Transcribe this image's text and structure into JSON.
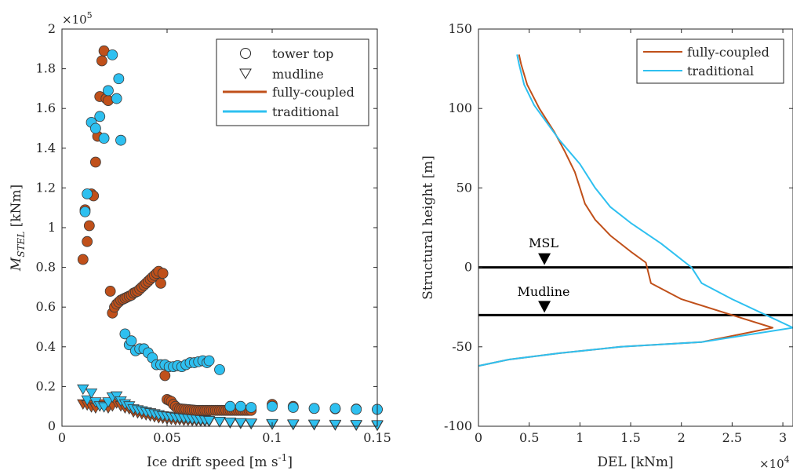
{
  "colors": {
    "fully_coupled": "#c0501a",
    "traditional": "#2ec0f0",
    "axis": "#262626"
  },
  "chart_data": [
    {
      "type": "scatter",
      "xlabel_main": "Ice drift speed [m s",
      "xlabel_sup": "-1",
      "xlabel_end": "]",
      "ylabel_main": "M",
      "ylabel_sub": "STEL",
      "ylabel_end": " [kNm]",
      "y_multiplier_base": "×10",
      "y_multiplier_exp": "5",
      "xlim": [
        0,
        0.15
      ],
      "ylim": [
        0,
        200000
      ],
      "xticks": [
        {
          "v": 0,
          "label": "0"
        },
        {
          "v": 0.05,
          "label": "0.05"
        },
        {
          "v": 0.1,
          "label": "0.1"
        },
        {
          "v": 0.15,
          "label": "0.15"
        }
      ],
      "yticks": [
        {
          "v": 0,
          "label": "0"
        },
        {
          "v": 20000,
          "label": "0.2"
        },
        {
          "v": 40000,
          "label": "0.4"
        },
        {
          "v": 60000,
          "label": "0.6"
        },
        {
          "v": 80000,
          "label": "0.8"
        },
        {
          "v": 100000,
          "label": "1"
        },
        {
          "v": 120000,
          "label": "1.2"
        },
        {
          "v": 140000,
          "label": "1.4"
        },
        {
          "v": 160000,
          "label": "1.6"
        },
        {
          "v": 180000,
          "label": "1.8"
        },
        {
          "v": 200000,
          "label": "2"
        }
      ],
      "legend": {
        "position": "top-right",
        "entries": [
          {
            "label": "tower top",
            "symbol": "circle"
          },
          {
            "label": "mudline",
            "symbol": "triangle"
          },
          {
            "label": "fully-coupled",
            "symbol": "line-fc"
          },
          {
            "label": "traditional",
            "symbol": "line-tr"
          }
        ]
      },
      "series": [
        {
          "model": "fully-coupled",
          "location": "tower top",
          "marker": "circle",
          "x": [
            0.01,
            0.011,
            0.012,
            0.013,
            0.014,
            0.015,
            0.016,
            0.017,
            0.018,
            0.019,
            0.02,
            0.021,
            0.022,
            0.023,
            0.024,
            0.025,
            0.026,
            0.027,
            0.028,
            0.029,
            0.03,
            0.031,
            0.032,
            0.033,
            0.034,
            0.035,
            0.036,
            0.037,
            0.038,
            0.039,
            0.04,
            0.041,
            0.042,
            0.043,
            0.044,
            0.045,
            0.046,
            0.047,
            0.048,
            0.049,
            0.05,
            0.051,
            0.052,
            0.053,
            0.054,
            0.055,
            0.056,
            0.057,
            0.058,
            0.059,
            0.06,
            0.061,
            0.062,
            0.063,
            0.064,
            0.065,
            0.066,
            0.067,
            0.068,
            0.069,
            0.07,
            0.071,
            0.072,
            0.073,
            0.074,
            0.075,
            0.076,
            0.077,
            0.078,
            0.079,
            0.08,
            0.081,
            0.082,
            0.083,
            0.084,
            0.085,
            0.086,
            0.087,
            0.088,
            0.089,
            0.09,
            0.1,
            0.11,
            0.12,
            0.13,
            0.14,
            0.15
          ],
          "y": [
            84000,
            109000,
            93000,
            101000,
            117000,
            116000,
            133000,
            146000,
            166000,
            184000,
            189000,
            165000,
            164000,
            68000,
            57000,
            60000,
            61500,
            62500,
            63500,
            64000,
            64500,
            65000,
            65500,
            66000,
            67000,
            67500,
            68000,
            69000,
            70000,
            71000,
            72000,
            73000,
            74000,
            75000,
            76000,
            77000,
            78000,
            72000,
            77000,
            25500,
            13500,
            13000,
            12500,
            11000,
            10000,
            9000,
            8800,
            8700,
            8600,
            8500,
            8400,
            8300,
            8200,
            8100,
            8000,
            8000,
            8000,
            8000,
            8000,
            8000,
            8000,
            8000,
            8000,
            8000,
            8000,
            8000,
            8000,
            8000,
            8000,
            8000,
            8000,
            8000,
            8000,
            8000,
            8000,
            8000,
            8000,
            8000,
            8000,
            8000,
            8000,
            11000,
            10000,
            9000,
            8800,
            8700,
            8500
          ],
          "sample": true
        },
        {
          "model": "traditional",
          "location": "tower top",
          "marker": "circle",
          "x": [
            0.011,
            0.012,
            0.014,
            0.016,
            0.018,
            0.02,
            0.022,
            0.024,
            0.026,
            0.027,
            0.028,
            0.03,
            0.032,
            0.033,
            0.035,
            0.037,
            0.039,
            0.041,
            0.043,
            0.045,
            0.047,
            0.049,
            0.051,
            0.053,
            0.055,
            0.057,
            0.059,
            0.061,
            0.063,
            0.065,
            0.067,
            0.069,
            0.07,
            0.075,
            0.08,
            0.085,
            0.09,
            0.1,
            0.11,
            0.12,
            0.13,
            0.14,
            0.15
          ],
          "y": [
            108000,
            117000,
            153000,
            150000,
            156000,
            145000,
            169000,
            187000,
            165000,
            175000,
            144000,
            46500,
            41000,
            43000,
            38000,
            39000,
            39000,
            37000,
            34500,
            31000,
            31000,
            31000,
            30000,
            30000,
            30500,
            30000,
            31000,
            32000,
            32000,
            32500,
            33000,
            32000,
            33000,
            28500,
            10000,
            10000,
            9500,
            10000,
            9500,
            9000,
            9000,
            8500,
            8500
          ],
          "sample": true
        },
        {
          "model": "fully-coupled",
          "location": "mudline",
          "marker": "triangle",
          "x": [
            0.01,
            0.012,
            0.014,
            0.016,
            0.018,
            0.02,
            0.022,
            0.024,
            0.026,
            0.028,
            0.03,
            0.032,
            0.034,
            0.036,
            0.038,
            0.04,
            0.042,
            0.044,
            0.046,
            0.048,
            0.05,
            0.052,
            0.054,
            0.056,
            0.058,
            0.06,
            0.062,
            0.064,
            0.066,
            0.068,
            0.07,
            0.075,
            0.08,
            0.085,
            0.09,
            0.1,
            0.11,
            0.12,
            0.13,
            0.14,
            0.15
          ],
          "y": [
            11000,
            10500,
            9500,
            9000,
            10000,
            11000,
            9000,
            10000,
            11500,
            10000,
            9000,
            8500,
            7000,
            6500,
            6000,
            5500,
            5000,
            4500,
            4000,
            3800,
            3500,
            3300,
            3000,
            3000,
            2800,
            2700,
            2600,
            2500,
            2400,
            2300,
            2200,
            2000,
            1500,
            1200,
            1000,
            800,
            600,
            500,
            400,
            300,
            200
          ]
        },
        {
          "model": "traditional",
          "location": "mudline",
          "marker": "triangle",
          "x": [
            0.01,
            0.012,
            0.014,
            0.016,
            0.018,
            0.02,
            0.022,
            0.024,
            0.026,
            0.028,
            0.03,
            0.032,
            0.034,
            0.036,
            0.038,
            0.04,
            0.042,
            0.044,
            0.046,
            0.048,
            0.05,
            0.052,
            0.054,
            0.056,
            0.058,
            0.06,
            0.062,
            0.064,
            0.066,
            0.068,
            0.07,
            0.075,
            0.08,
            0.085,
            0.09,
            0.1,
            0.11,
            0.12,
            0.13,
            0.14,
            0.15
          ],
          "y": [
            18500,
            13000,
            16500,
            12000,
            10000,
            9500,
            12000,
            14500,
            15000,
            12500,
            11000,
            10000,
            8500,
            8000,
            7500,
            7000,
            6500,
            6000,
            5500,
            5000,
            4800,
            4500,
            4200,
            4000,
            3800,
            3600,
            3400,
            3200,
            3000,
            2800,
            2600,
            2200,
            1800,
            1500,
            1300,
            1100,
            900,
            800,
            700,
            600,
            500
          ]
        }
      ]
    },
    {
      "type": "line",
      "xlabel": "DEL [kNm]",
      "ylabel": "Structural height [m]",
      "x_multiplier_base": "×10",
      "x_multiplier_exp": "4",
      "xlim": [
        0,
        31000
      ],
      "ylim": [
        -100,
        150
      ],
      "xticks": [
        {
          "v": 0,
          "label": "0"
        },
        {
          "v": 5000,
          "label": "0.5"
        },
        {
          "v": 10000,
          "label": "1"
        },
        {
          "v": 15000,
          "label": "1.5"
        },
        {
          "v": 20000,
          "label": "2"
        },
        {
          "v": 25000,
          "label": "2.5"
        },
        {
          "v": 30000,
          "label": "3"
        }
      ],
      "yticks": [
        {
          "v": -100,
          "label": "-100"
        },
        {
          "v": -50,
          "label": "-50"
        },
        {
          "v": 0,
          "label": "0"
        },
        {
          "v": 50,
          "label": "50"
        },
        {
          "v": 100,
          "label": "100"
        },
        {
          "v": 150,
          "label": "150"
        }
      ],
      "legend": {
        "position": "top-right",
        "entries": [
          {
            "label": "fully-coupled",
            "symbol": "line-fc"
          },
          {
            "label": "traditional",
            "symbol": "line-tr"
          }
        ]
      },
      "series": [
        {
          "name": "fully-coupled",
          "x": [
            4000,
            4200,
            4800,
            6000,
            7500,
            8500,
            9500,
            10000,
            10500,
            11500,
            13000,
            15000,
            16500,
            17000,
            20000,
            26000,
            29000,
            22000,
            14000,
            8000,
            3000,
            0
          ],
          "y": [
            134,
            128,
            115,
            100,
            85,
            73,
            60,
            50,
            40,
            30,
            20,
            10,
            3,
            -10,
            -20,
            -32,
            -38,
            -47,
            -50,
            -54,
            -58,
            -62
          ]
        },
        {
          "name": "traditional",
          "x": [
            3800,
            4000,
            4500,
            5500,
            8000,
            10000,
            11500,
            13000,
            15000,
            18000,
            21000,
            22000,
            25000,
            31000,
            22000,
            14000,
            8000,
            3000,
            0
          ],
          "y": [
            134,
            128,
            115,
            102,
            80,
            65,
            50,
            38,
            28,
            15,
            0,
            -10,
            -20,
            -38,
            -47,
            -50,
            -54,
            -58,
            -62
          ]
        }
      ],
      "hlines": [
        {
          "y": 0,
          "label": "MSL",
          "marker_x": 6500
        },
        {
          "y": -30,
          "label": "Mudline",
          "marker_x": 6500
        }
      ]
    }
  ]
}
